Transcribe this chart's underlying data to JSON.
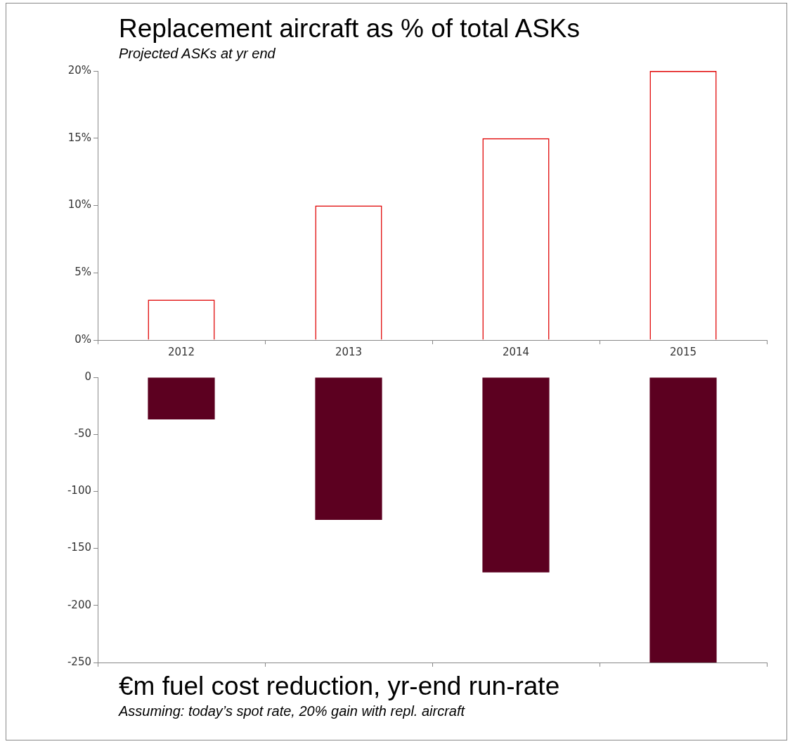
{
  "chart_data": [
    {
      "type": "bar",
      "title": "Replacement aircraft as % of total ASKs",
      "subtitle": "Projected ASKs at yr end",
      "categories": [
        "2012",
        "2013",
        "2014",
        "2015"
      ],
      "values": [
        3,
        10,
        15,
        20
      ],
      "color": "#e00000",
      "ylim": [
        0,
        20
      ],
      "yticks": [
        {
          "value": 0,
          "label": "0%"
        },
        {
          "value": 5,
          "label": "5%"
        },
        {
          "value": 10,
          "label": "10%"
        },
        {
          "value": 15,
          "label": "15%"
        },
        {
          "value": 20,
          "label": "20%"
        }
      ],
      "grid": false
    },
    {
      "type": "bar",
      "title": "€m fuel cost reduction, yr-end run-rate",
      "subtitle": "Assuming: today’s spot rate, 20% gain with repl. aircraft",
      "categories": [
        "2012",
        "2013",
        "2014",
        "2015"
      ],
      "values": [
        -37,
        -125,
        -171,
        -250
      ],
      "color": "#5c0020",
      "ylim": [
        -250,
        0
      ],
      "yticks": [
        -250,
        -200,
        -150,
        -100,
        -50,
        0
      ],
      "tick_labels": "y",
      "grid": false
    }
  ]
}
